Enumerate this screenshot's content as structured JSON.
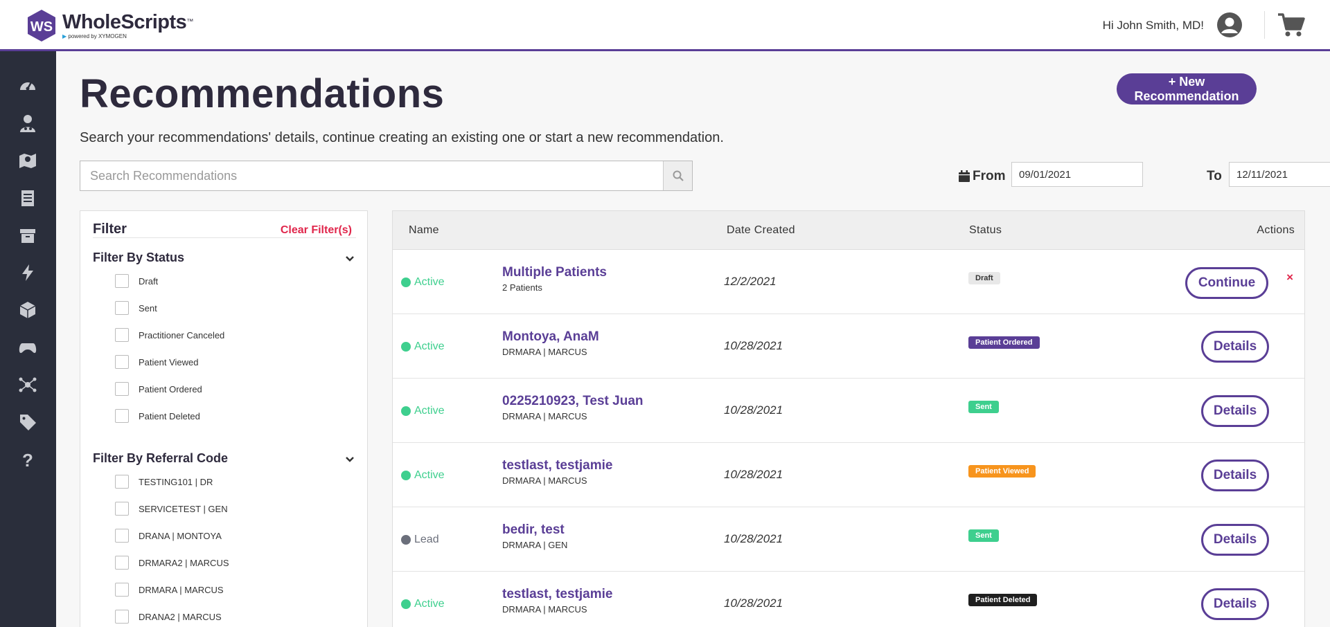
{
  "brand": {
    "name": "WholeScripts",
    "tm": "™",
    "powered_by": "powered by XYMOGEN",
    "logo_monogram": "WS"
  },
  "header": {
    "greeting": "Hi John Smith, MD!",
    "icons": [
      "user-account-icon",
      "cart-icon"
    ]
  },
  "sidebar": {
    "items": [
      {
        "icon": "dashboard-icon"
      },
      {
        "icon": "practitioner-icon"
      },
      {
        "icon": "map-icon"
      },
      {
        "icon": "document-icon"
      },
      {
        "icon": "archive-icon"
      },
      {
        "icon": "lightning-icon"
      },
      {
        "icon": "box-icon"
      },
      {
        "icon": "gamepad-icon"
      },
      {
        "icon": "network-icon"
      },
      {
        "icon": "tag-icon"
      },
      {
        "icon": "help-icon"
      }
    ]
  },
  "page": {
    "title": "Recommendations",
    "subtitle": "Search your recommendations' details, continue creating an existing one or start a new recommendation.",
    "new_button": "+ New Recommendation"
  },
  "search": {
    "placeholder": "Search Recommendations",
    "value": ""
  },
  "date_range": {
    "from_label": "From",
    "from_value": "09/01/2021",
    "to_label": "To",
    "to_value": "12/11/2021"
  },
  "filter": {
    "title": "Filter",
    "clear_label": "Clear Filter(s)",
    "status_section": {
      "title": "Filter By Status",
      "options": [
        "Draft",
        "Sent",
        "Practitioner Canceled",
        "Patient Viewed",
        "Patient Ordered",
        "Patient Deleted"
      ]
    },
    "referral_section": {
      "title": "Filter By Referral Code",
      "options": [
        "TESTING101 | DR",
        "SERVICETEST | GEN",
        "DRANA | MONTOYA",
        "DRMARA2 | MARCUS",
        "DRMARA | MARCUS",
        "DRANA2 | MARCUS"
      ]
    }
  },
  "table": {
    "columns": [
      "Name",
      "Date Created",
      "Status",
      "Actions"
    ],
    "rows": [
      {
        "state": "Active",
        "name": "Multiple Patients",
        "sub": "2 Patients",
        "date": "12/2/2021",
        "status": "Draft",
        "action": "Continue",
        "delete": "×"
      },
      {
        "state": "Active",
        "name": "Montoya, AnaM",
        "sub": "DRMARA | MARCUS",
        "date": "10/28/2021",
        "status": "Patient Ordered",
        "action": "Details"
      },
      {
        "state": "Active",
        "name": "0225210923, Test Juan",
        "sub": "DRMARA | MARCUS",
        "date": "10/28/2021",
        "status": "Sent",
        "action": "Details"
      },
      {
        "state": "Active",
        "name": "testlast, testjamie",
        "sub": "DRMARA | MARCUS",
        "date": "10/28/2021",
        "status": "Patient Viewed",
        "action": "Details"
      },
      {
        "state": "Lead",
        "name": "bedir, test",
        "sub": "DRMARA | GEN",
        "date": "10/28/2021",
        "status": "Sent",
        "action": "Details"
      },
      {
        "state": "Active",
        "name": "testlast, testjamie",
        "sub": "DRMARA | MARCUS",
        "date": "10/28/2021",
        "status": "Patient Deleted",
        "action": "Details"
      }
    ]
  },
  "colors": {
    "brand_purple": "#5a3e96",
    "sidebar_bg": "#2a2e3b",
    "active_green": "#3ecf8e",
    "lead_gray": "#6b6f7b",
    "danger_red": "#e0264b",
    "badge_draft": "#e8e8e8",
    "badge_ordered": "#5a3e96",
    "badge_sent": "#3ecf8e",
    "badge_viewed": "#f7941d",
    "badge_deleted": "#1f1f1f"
  }
}
